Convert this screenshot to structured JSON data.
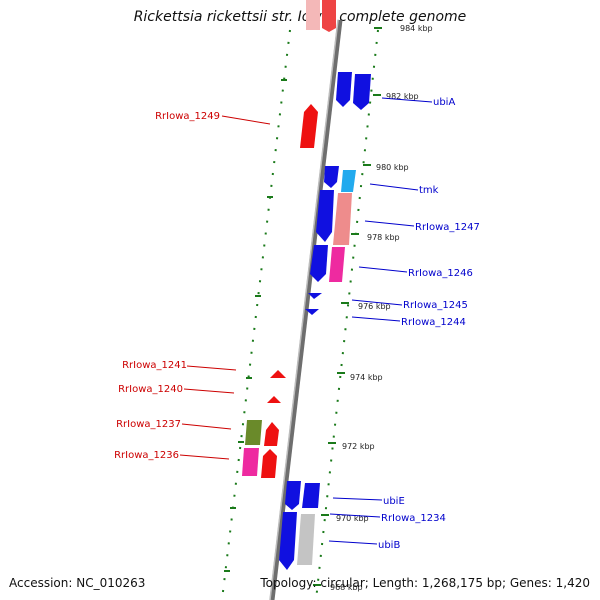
{
  "title": "Rickettsia rickettsii str. Iowa, complete genome",
  "accession": "Accession: NC_010263",
  "topology": "Topology: circular; Length: 1,268,175 bp; Genes: 1,420",
  "colors": {
    "backbone": "#888888",
    "blue_gene": "#1010e0",
    "red_gene": "#ee1111",
    "pink_gene": "#ee2aa0",
    "salmon_gene": "#ee8c8c",
    "cyan_gene": "#22aaee",
    "olive_gene": "#6a8a2a",
    "grey_gene": "#c4c4c4",
    "tick_green": "#1a7a1a",
    "label_red": "#cc0000",
    "label_blue": "#0000cc"
  },
  "ticks": [
    "984 kbp",
    "982 kbp",
    "980 kbp",
    "978 kbp",
    "976 kbp",
    "974 kbp",
    "972 kbp",
    "970 kbp",
    "968 kbp"
  ],
  "labels_right": [
    "ubiA",
    "tmk",
    "RrIowa_1247",
    "RrIowa_1246",
    "RrIowa_1245",
    "RrIowa_1244",
    "ubiE",
    "RrIowa_1234",
    "ubiB"
  ],
  "labels_left": [
    "RrIowa_1249",
    "RrIowa_1241",
    "RrIowa_1240",
    "RrIowa_1237",
    "RrIowa_1236"
  ]
}
